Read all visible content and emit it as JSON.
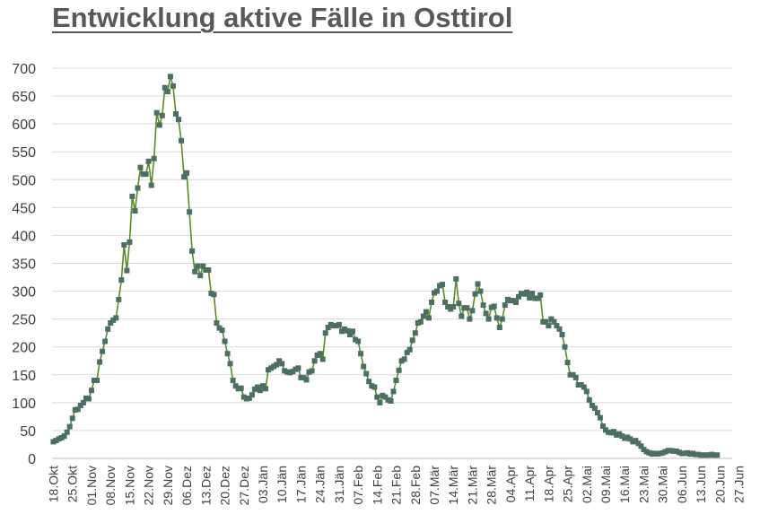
{
  "chart_data": {
    "type": "line",
    "title": "Entwicklung aktive Fälle in Osttirol",
    "xlabel": "",
    "ylabel": "",
    "ylim": [
      0,
      700
    ],
    "yticks": [
      0,
      50,
      100,
      150,
      200,
      250,
      300,
      350,
      400,
      450,
      500,
      550,
      600,
      650,
      700
    ],
    "grid": true,
    "legend": "none",
    "line_color": "#5b8c1f",
    "marker_color": "#4a6f63",
    "x_tick_labels": [
      "18.Okt",
      "25.Okt",
      "01.Nov",
      "08.Nov",
      "15.Nov",
      "22.Nov",
      "29.Nov",
      "06.Dez",
      "13.Dez",
      "20.Dez",
      "27.Dez",
      "03.Jän",
      "10.Jän",
      "17.Jän",
      "24.Jän",
      "31.Jän",
      "07.Feb",
      "14.Feb",
      "21.Feb",
      "28.Feb",
      "07.Mär",
      "14.Mär",
      "21.Mär",
      "28.Mär",
      "04.Apr",
      "11.Apr",
      "18.Apr",
      "25.Apr",
      "02.Mai",
      "09.Mai",
      "16.Mai",
      "23.Mai",
      "30.Mai",
      "06.Jun",
      "13.Jun",
      "20.Jun",
      "27.Jun"
    ],
    "weeks": [
      [
        30,
        32,
        35,
        37,
        40,
        47,
        57
      ],
      [
        72,
        87,
        88,
        95,
        100,
        108,
        107
      ],
      [
        122,
        140,
        140,
        173,
        192,
        210,
        232
      ],
      [
        243,
        248,
        252,
        285,
        320,
        383,
        337
      ],
      [
        388,
        470,
        444,
        485,
        522,
        510,
        510
      ],
      [
        533,
        490,
        538,
        620,
        598,
        615,
        665
      ],
      [
        658,
        685,
        668,
        618,
        608,
        570,
        505
      ],
      [
        512,
        442,
        372,
        335,
        345,
        328,
        345
      ],
      [
        338,
        338,
        296,
        294,
        243,
        234,
        230
      ],
      [
        210,
        188,
        170,
        140,
        130,
        125,
        126
      ],
      [
        110,
        107,
        108,
        114,
        124,
        128,
        122
      ],
      [
        130,
        125,
        159,
        162,
        165,
        168,
        175
      ],
      [
        170,
        157,
        155,
        154,
        156,
        160,
        162
      ],
      [
        145,
        145,
        141,
        155,
        157,
        175,
        185
      ],
      [
        188,
        178,
        225,
        235,
        240,
        238,
        238
      ],
      [
        240,
        228,
        232,
        229,
        222,
        228,
        213
      ],
      [
        210,
        188,
        165,
        152,
        138,
        130,
        128
      ],
      [
        110,
        100,
        113,
        110,
        105,
        103,
        120
      ],
      [
        140,
        158,
        175,
        178,
        190,
        195,
        212
      ],
      [
        225,
        243,
        245,
        255,
        263,
        252,
        280
      ],
      [
        297,
        300,
        310,
        312,
        280,
        272,
        268
      ],
      [
        272,
        322,
        278,
        255,
        270,
        270,
        250
      ],
      [
        265,
        295,
        313,
        300,
        275,
        260,
        250
      ],
      [
        271,
        273,
        252,
        235,
        250,
        275,
        285
      ],
      [
        283,
        283,
        280,
        290,
        296,
        295,
        298
      ],
      [
        288,
        296,
        287,
        287,
        293,
        245,
        245
      ],
      [
        238,
        250,
        245,
        238,
        232,
        222,
        200
      ],
      [
        172,
        150,
        150,
        145,
        132,
        132,
        128
      ],
      [
        120,
        105,
        95,
        90,
        82,
        73,
        58
      ],
      [
        51,
        47,
        46,
        48,
        42,
        44,
        40
      ],
      [
        36,
        38,
        35,
        30,
        32,
        27,
        22
      ],
      [
        16,
        12,
        10,
        8,
        9,
        8,
        9
      ],
      [
        10,
        12,
        14,
        14,
        13,
        13,
        11
      ],
      [
        9,
        9,
        10,
        8,
        9,
        7,
        7
      ],
      [
        6,
        6,
        6,
        6,
        7,
        6,
        6
      ]
    ]
  }
}
